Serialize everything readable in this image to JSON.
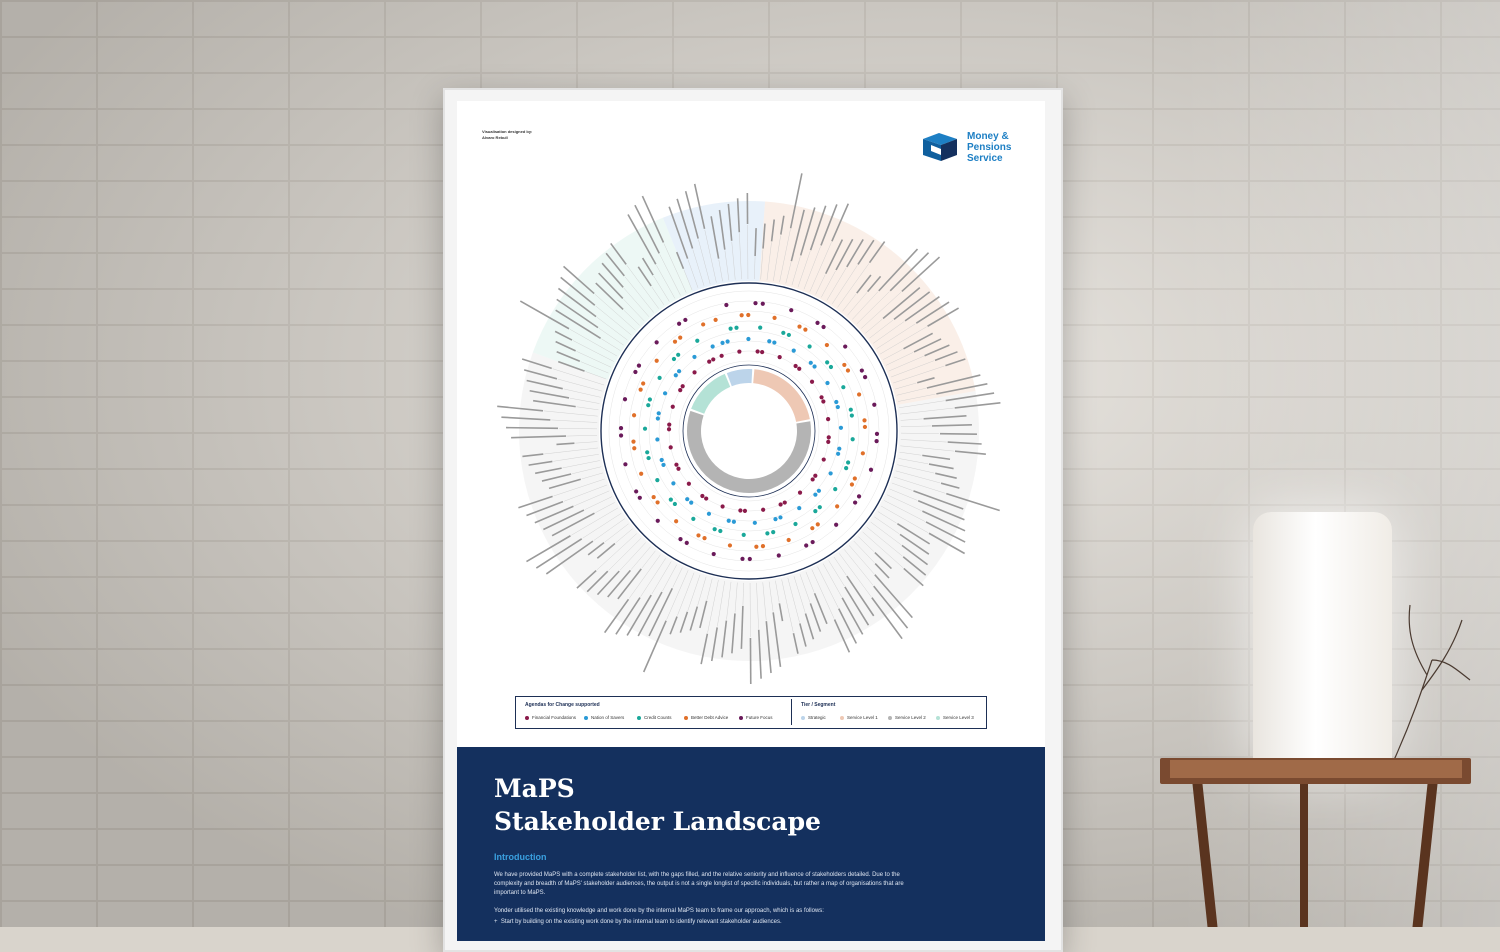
{
  "poster": {
    "credit_line1": "Visualisation designed by:",
    "credit_line2": "Alvaro Rebull",
    "logo": {
      "line1": "Money &",
      "line2": "Pensions",
      "line3": "Service"
    },
    "legend": {
      "agendas_title": "Agendas for Change supported",
      "agendas": [
        {
          "label": "Financial Foundations",
          "color": "#8a1a4a"
        },
        {
          "label": "Nation of Savers",
          "color": "#2a9ad6"
        },
        {
          "label": "Credit Counts",
          "color": "#1aa89a"
        },
        {
          "label": "Better Debt Advice",
          "color": "#e0702a"
        },
        {
          "label": "Future Focus",
          "color": "#6a1a5a"
        }
      ],
      "tier_title": "Tier / Segment",
      "tiers": [
        {
          "label": "Strategic",
          "color": "#bcd4ea"
        },
        {
          "label": "Service Level 1",
          "color": "#eec8b4"
        },
        {
          "label": "Service Level 2",
          "color": "#b4b4b4"
        },
        {
          "label": "Service Level 3",
          "color": "#b4e2d6"
        }
      ]
    },
    "title_line1": "MaPS",
    "title_line2": "Stakeholder Landscape",
    "intro_heading": "Introduction",
    "intro_p1": "We have provided MaPS with a complete stakeholder list, with the gaps filled, and the relative seniority and influence of stakeholders detailed. Due to the complexity and breadth of MaPS' stakeholder audiences, the output is not a single longlist of specific individuals, but rather a map of organisations that are important to MaPS.",
    "intro_p2": "Yonder utilised the existing knowledge and work done by the internal MaPS team to frame our approach, which is as follows:",
    "intro_bullet": "Start by building on the existing work done by the internal team to identify relevant stakeholder audiences."
  }
}
